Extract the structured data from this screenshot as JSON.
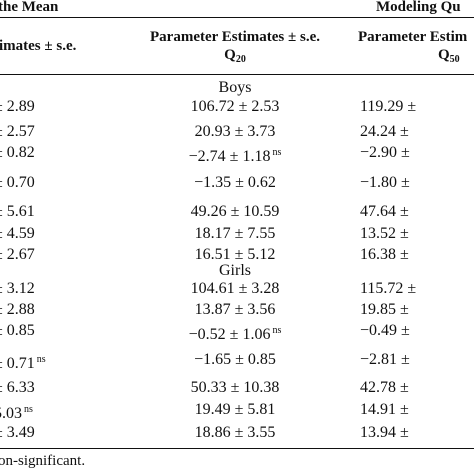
{
  "header": {
    "left_group": "the Mean",
    "right_group": "Modeling Qu"
  },
  "columns": {
    "c1": "timates ± s.e.",
    "c2_line1": "Parameter Estimates ± s.e.",
    "c2_q": "Q",
    "c2_sub": "20",
    "c3_line1": "Parameter Estim",
    "c3_q": "Q",
    "c3_sub": "50"
  },
  "sections": {
    "boys": "Boys",
    "girls": "Girls"
  },
  "rows": [
    {
      "c1": "± 2.89",
      "c2": "106.72 ± 2.53",
      "c2_ns": "",
      "c3": "119.29 ±"
    },
    {
      "c1": "± 2.57",
      "c2": "20.93 ± 3.73",
      "c2_ns": "",
      "c3": "24.24 ±"
    },
    {
      "c1": "± 0.82",
      "c2": "−2.74 ± 1.18",
      "c2_ns": "ns",
      "c3": "−2.90 ±"
    },
    {
      "c1": "± 0.70",
      "c2": "−1.35 ± 0.62",
      "c2_ns": "",
      "c3": "−1.80 ±"
    },
    {
      "c1": "± 5.61",
      "c2": "49.26 ± 10.59",
      "c2_ns": "",
      "c3": "47.64 ±"
    },
    {
      "c1": "± 4.59",
      "c2": "18.17 ± 7.55",
      "c2_ns": "",
      "c3": "13.52 ±"
    },
    {
      "c1": "± 2.67",
      "c2": "16.51 ± 5.12",
      "c2_ns": "",
      "c3": "16.38 ±"
    },
    {
      "c1": "± 3.12",
      "c2": "104.61 ± 3.28",
      "c2_ns": "",
      "c3": "115.72 ±"
    },
    {
      "c1": "± 2.88",
      "c2": "13.87 ± 3.56",
      "c2_ns": "",
      "c3": "19.85 ±"
    },
    {
      "c1": "± 0.85",
      "c2": "−0.52 ± 1.06",
      "c2_ns": "ns",
      "c3": "−0.49 ±"
    },
    {
      "c1": "± 0.71",
      "c1_ns": "ns",
      "c2": "−1.65 ± 0.85",
      "c2_ns": "",
      "c3": "−2.81 ±"
    },
    {
      "c1": "± 6.33",
      "c2": "50.33 ± 10.38",
      "c2_ns": "",
      "c3": "42.78 ±"
    },
    {
      "c1": "5.03",
      "c1_ns": "ns",
      "c2": "19.49 ± 5.81",
      "c2_ns": "",
      "c3": "14.91 ±"
    },
    {
      "c1": "± 3.49",
      "c2": "18.86 ± 3.55",
      "c2_ns": "",
      "c3": "13.94 ±"
    }
  ],
  "footnote": "on-significant."
}
